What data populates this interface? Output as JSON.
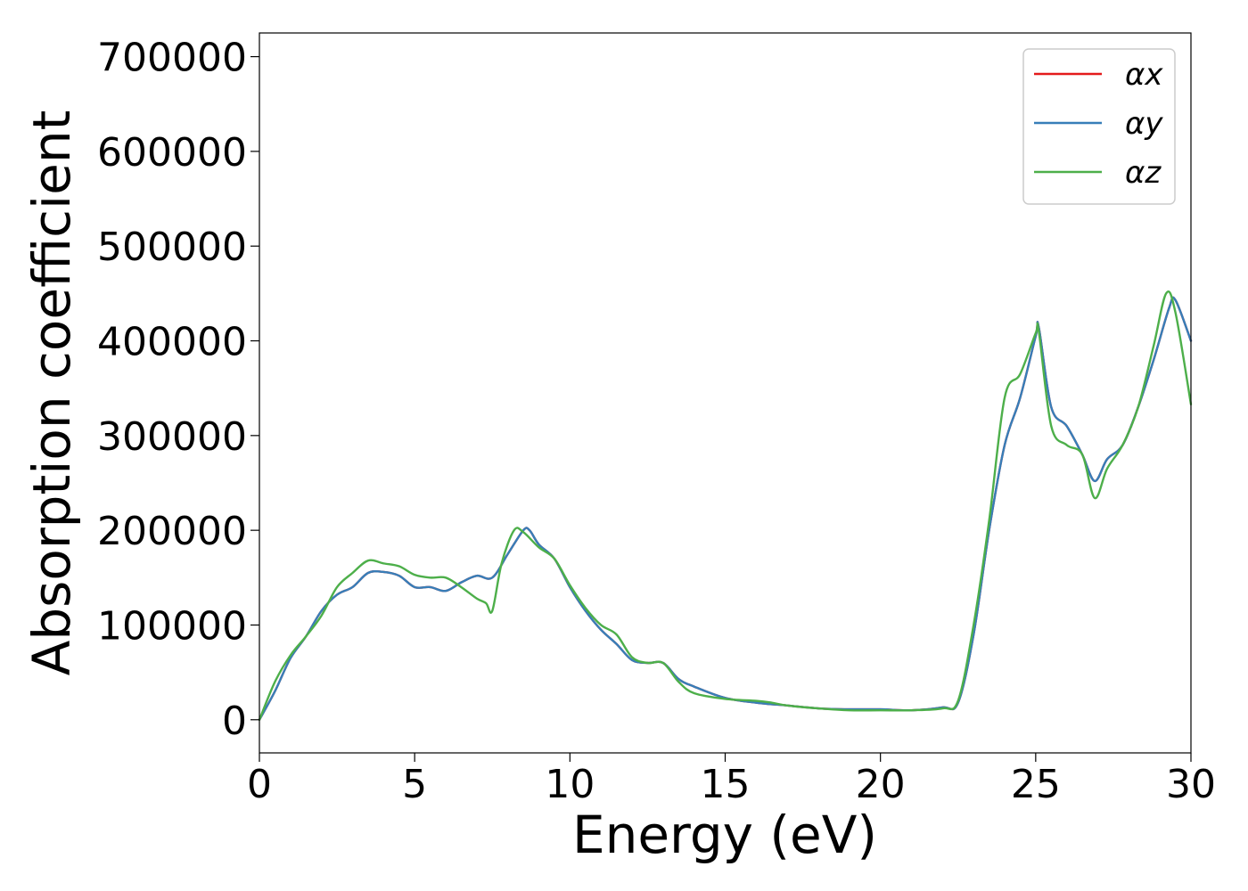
{
  "chart_data": {
    "type": "line",
    "xlabel": "Energy (eV)",
    "ylabel": "Absorption coefficient",
    "xlim": [
      0,
      30
    ],
    "ylim": [
      -35000,
      725000
    ],
    "xticks": [
      0,
      5,
      10,
      15,
      20,
      25,
      30
    ],
    "yticks": [
      0,
      100000,
      200000,
      300000,
      400000,
      500000,
      600000,
      700000
    ],
    "grid": false,
    "legend_position": "top-right",
    "series": [
      {
        "name": "αx",
        "color": "#e41a1c",
        "x": [
          0,
          0.5,
          1,
          1.5,
          2,
          2.5,
          3,
          3.5,
          4,
          4.5,
          5,
          5.5,
          6,
          6.5,
          7,
          7.5,
          8,
          8.5,
          8.7,
          9,
          9.5,
          10,
          10.5,
          11,
          11.5,
          12,
          12.5,
          13,
          13.5,
          14,
          15,
          16,
          17,
          18,
          19,
          20,
          21,
          22,
          22.5,
          23,
          23.5,
          24,
          24.5,
          25,
          25.1,
          25.5,
          26,
          26.5,
          26.9,
          27.3,
          27.8,
          28.3,
          28.8,
          29.3,
          29.5,
          30
        ],
        "values": [
          0,
          30000,
          65000,
          88000,
          115000,
          132000,
          140000,
          155000,
          156000,
          152000,
          140000,
          140000,
          136000,
          145000,
          152000,
          150000,
          175000,
          200000,
          200000,
          185000,
          170000,
          140000,
          115000,
          95000,
          80000,
          63000,
          60000,
          60000,
          43000,
          35000,
          23000,
          18000,
          15000,
          12000,
          11000,
          11000,
          10000,
          13000,
          18000,
          90000,
          200000,
          290000,
          340000,
          405000,
          414000,
          330000,
          310000,
          280000,
          252000,
          275000,
          290000,
          330000,
          380000,
          435000,
          443000,
          400000
        ]
      },
      {
        "name": "αy",
        "color": "#377eb8",
        "x": [
          0,
          0.5,
          1,
          1.5,
          2,
          2.5,
          3,
          3.5,
          4,
          4.5,
          5,
          5.5,
          6,
          6.5,
          7,
          7.5,
          8,
          8.5,
          8.7,
          9,
          9.5,
          10,
          10.5,
          11,
          11.5,
          12,
          12.5,
          13,
          13.5,
          14,
          15,
          16,
          17,
          18,
          19,
          20,
          21,
          22,
          22.5,
          23,
          23.5,
          24,
          24.5,
          25,
          25.1,
          25.5,
          26,
          26.5,
          26.9,
          27.3,
          27.8,
          28.3,
          28.8,
          29.3,
          29.5,
          30
        ],
        "values": [
          0,
          30000,
          65000,
          88000,
          115000,
          132000,
          140000,
          155000,
          156000,
          152000,
          140000,
          140000,
          136000,
          145000,
          152000,
          150000,
          175000,
          200000,
          200000,
          185000,
          170000,
          140000,
          115000,
          95000,
          80000,
          63000,
          60000,
          60000,
          43000,
          35000,
          23000,
          18000,
          15000,
          12000,
          11000,
          11000,
          10000,
          13000,
          18000,
          90000,
          200000,
          290000,
          340000,
          405000,
          414000,
          330000,
          310000,
          280000,
          252000,
          275000,
          290000,
          330000,
          380000,
          435000,
          443000,
          400000
        ]
      },
      {
        "name": "αz",
        "color": "#4daf4a",
        "x": [
          0,
          0.5,
          1,
          1.5,
          2,
          2.5,
          3,
          3.5,
          4,
          4.5,
          5,
          5.5,
          6,
          6.5,
          7,
          7.3,
          7.5,
          7.8,
          8.2,
          8.5,
          9,
          9.5,
          10,
          10.5,
          11,
          11.5,
          12,
          12.5,
          13,
          13.5,
          14,
          15,
          16,
          16.5,
          17,
          18,
          19,
          20,
          21,
          22,
          22.5,
          23,
          23.5,
          24,
          24.5,
          25,
          25.1,
          25.5,
          26,
          26.5,
          26.9,
          27.3,
          27.8,
          28.3,
          28.8,
          29.2,
          29.5,
          30
        ],
        "values": [
          0,
          40000,
          68000,
          88000,
          110000,
          140000,
          155000,
          168000,
          165000,
          162000,
          153000,
          150000,
          150000,
          140000,
          128000,
          123000,
          115000,
          165000,
          200000,
          198000,
          182000,
          170000,
          142000,
          118000,
          100000,
          90000,
          66000,
          60000,
          60000,
          40000,
          28000,
          22000,
          20000,
          18000,
          15000,
          12000,
          10000,
          10000,
          10000,
          12000,
          20000,
          100000,
          210000,
          340000,
          365000,
          408000,
          410000,
          310000,
          290000,
          280000,
          234000,
          265000,
          290000,
          330000,
          395000,
          450000,
          430000,
          333000
        ]
      }
    ]
  }
}
